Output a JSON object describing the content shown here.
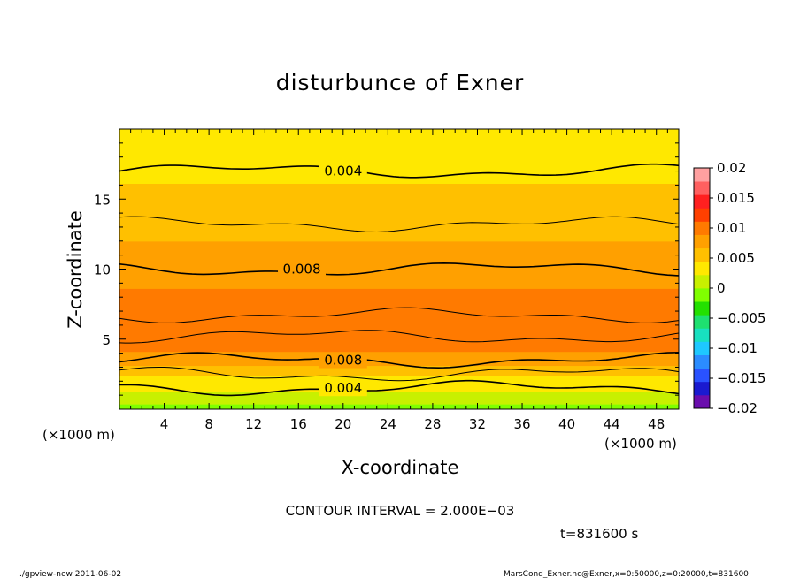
{
  "chart_data": {
    "type": "heatmap",
    "title": "disturbunce of Exner",
    "xlabel": "X-coordinate",
    "ylabel": "Z-coordinate",
    "x_unit_left": "(×1000 m)",
    "x_unit_right": "(×1000 m)",
    "xlim": [
      0,
      50
    ],
    "ylim": [
      0,
      20
    ],
    "x_ticks": [
      4,
      8,
      12,
      16,
      20,
      24,
      28,
      32,
      36,
      40,
      44,
      48
    ],
    "y_ticks": [
      5,
      10,
      15
    ],
    "colorbar": {
      "min": -0.02,
      "max": 0.02,
      "tick_values": [
        0.02,
        0.015,
        0.01,
        0.005,
        0,
        -0.005,
        -0.01,
        -0.015,
        -0.02
      ],
      "tick_labels": [
        "0.02",
        "0.015",
        "0.01",
        "0.005",
        "0",
        "−0.005",
        "−0.01",
        "−0.015",
        "−0.02"
      ],
      "bins": [
        "#6a0dad",
        "#1a1ad0",
        "#2a52ff",
        "#2b8cff",
        "#1ec8ff",
        "#18e0c0",
        "#1ee070",
        "#23e000",
        "#80ff00",
        "#c8f000",
        "#ffe800",
        "#ffc000",
        "#ffa000",
        "#ff7a00",
        "#ff4000",
        "#ff2020",
        "#ff6060",
        "#ffa0a0"
      ]
    },
    "vertical_profile": {
      "z": [
        0,
        1.5,
        2.2,
        3.0,
        3.5,
        4.2,
        5.5,
        6.5,
        7.2,
        8.5,
        10,
        11.5,
        13,
        15,
        17,
        20
      ],
      "value": [
        -0.001,
        0.003,
        0.004,
        0.006,
        0.008,
        0.009,
        0.0105,
        0.0105,
        0.0095,
        0.009,
        0.008,
        0.007,
        0.006,
        0.005,
        0.004,
        0.003
      ]
    },
    "contours": [
      {
        "level": 0.004,
        "label": "0.004",
        "z_mean": 17.0
      },
      {
        "level": 0.006,
        "label": "",
        "z_mean": 13.2
      },
      {
        "level": 0.008,
        "label": "0.008",
        "z_mean": 10.0
      },
      {
        "level": 0.01,
        "label": "",
        "z_mean": 6.7
      },
      {
        "level": 0.01,
        "label": "",
        "z_mean": 5.2
      },
      {
        "level": 0.008,
        "label": "0.008",
        "z_mean": 3.5
      },
      {
        "level": 0.006,
        "label": "",
        "z_mean": 2.5
      },
      {
        "level": 0.004,
        "label": "0.004",
        "z_mean": 1.5
      }
    ],
    "contour_interval_text": "CONTOUR INTERVAL = 2.000E−03",
    "time_text": "t=831600 s"
  },
  "footer": {
    "left": "./gpview-new   2011-06-02",
    "right": "MarsCond_Exner.nc@Exner,x=0:50000,z=0:20000,t=831600"
  }
}
